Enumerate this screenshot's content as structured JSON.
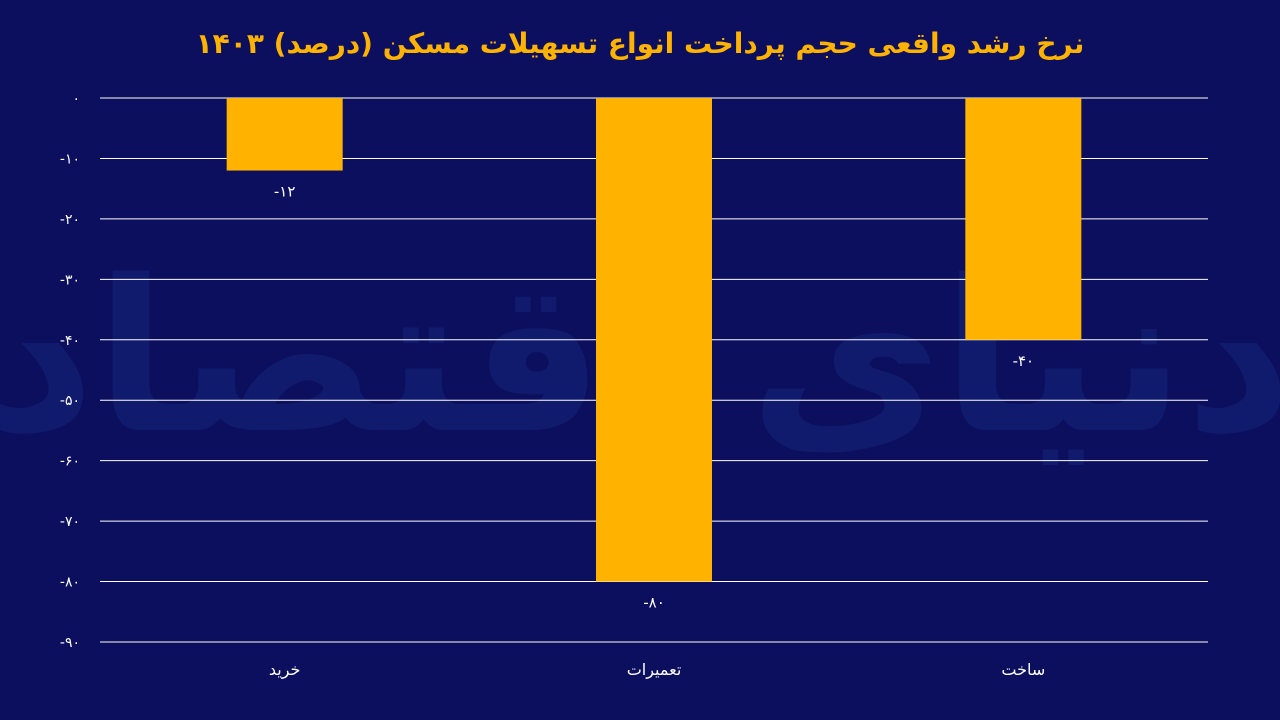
{
  "colors": {
    "background": "#0b0f5e",
    "bar": "#ffb300",
    "title": "#ffb300",
    "text": "#ffffff",
    "grid": "#ffffff",
    "watermark": "#16257a"
  },
  "watermark_text": "دنیای اقتصاد",
  "chart_data": {
    "type": "bar",
    "title": "نرخ رشد واقعی حجم پرداخت انواع تسهیلات مسکن (درصد) ۱۴۰۳",
    "xlabel": "",
    "ylabel": "",
    "categories": [
      "خرید",
      "تعمیرات",
      "ساخت"
    ],
    "values": [
      -12,
      -80,
      -40
    ],
    "data_labels": [
      "-۱۲",
      "-۸۰",
      "-۴۰"
    ],
    "ylim": [
      -90,
      0
    ],
    "y_ticks": [
      0,
      -10,
      -20,
      -30,
      -40,
      -50,
      -60,
      -70,
      -80,
      -90
    ],
    "y_tick_labels": [
      "۰",
      "-۱۰",
      "-۲۰",
      "-۳۰",
      "-۴۰",
      "-۵۰",
      "-۶۰",
      "-۷۰",
      "-۸۰",
      "-۹۰"
    ],
    "grid": true,
    "legend": "none"
  }
}
